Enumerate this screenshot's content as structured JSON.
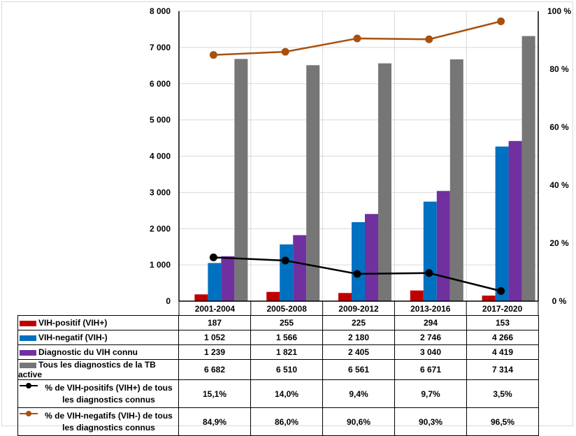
{
  "chart_data": {
    "type": "bar",
    "categories": [
      "2001-2004",
      "2005-2008",
      "2009-2012",
      "2013-2016",
      "2017-2020"
    ],
    "series": [
      {
        "name": "VIH-positif (VIH+)",
        "kind": "bar",
        "axis": "left",
        "color": "#c00000",
        "values": [
          187,
          255,
          225,
          294,
          153
        ],
        "labels": [
          "187",
          "255",
          "225",
          "294",
          "153"
        ]
      },
      {
        "name": "VIH-negatif (VIH-)",
        "kind": "bar",
        "axis": "left",
        "color": "#0070c0",
        "values": [
          1052,
          1566,
          2180,
          2746,
          4266
        ],
        "labels": [
          "1 052",
          "1 566",
          "2 180",
          "2 746",
          "4 266"
        ]
      },
      {
        "name": "Diagnostic du VIH connu",
        "kind": "bar",
        "axis": "left",
        "color": "#7030a0",
        "values": [
          1239,
          1821,
          2405,
          3040,
          4419
        ],
        "labels": [
          "1 239",
          "1 821",
          "2 405",
          "3 040",
          "4 419"
        ]
      },
      {
        "name": "Tous les diagnostics de la TB active",
        "kind": "bar",
        "axis": "left",
        "color": "#767676",
        "values": [
          6682,
          6510,
          6561,
          6671,
          7314
        ],
        "labels": [
          "6 682",
          "6 510",
          "6 561",
          "6 671",
          "7 314"
        ]
      },
      {
        "name": "% de VIH-positifs (VIH+) de tous les diagnostics connus",
        "kind": "line",
        "axis": "right",
        "color": "#000000",
        "values": [
          15.1,
          14.0,
          9.4,
          9.7,
          3.5
        ],
        "labels": [
          "15,1%",
          "14,0%",
          "9,4%",
          "9,7%",
          "3,5%"
        ]
      },
      {
        "name": "% de VIH-negatifs (VIH-) de tous les diagnostics connus",
        "kind": "line",
        "axis": "right",
        "color": "#a9500e",
        "values": [
          84.9,
          86.0,
          90.6,
          90.3,
          96.5
        ],
        "labels": [
          "84,9%",
          "86,0%",
          "90,6%",
          "90,3%",
          "96,5%"
        ]
      }
    ],
    "y_left": {
      "ylim": [
        0,
        8000
      ],
      "ticks": [
        0,
        1000,
        2000,
        3000,
        4000,
        5000,
        6000,
        7000,
        8000
      ],
      "tick_labels": [
        "0",
        "1 000",
        "2 000",
        "3 000",
        "4 000",
        "5 000",
        "6 000",
        "7 000",
        "8 000"
      ]
    },
    "y_right": {
      "ylim": [
        0,
        100
      ],
      "ticks": [
        0,
        20,
        40,
        60,
        80,
        100
      ],
      "tick_labels": [
        "0 %",
        "20 %",
        "40 %",
        "60 %",
        "80 %",
        "100 %"
      ]
    },
    "grid": true,
    "legend": "data-table-below",
    "title": "",
    "xlabel": "",
    "ylabel": ""
  }
}
